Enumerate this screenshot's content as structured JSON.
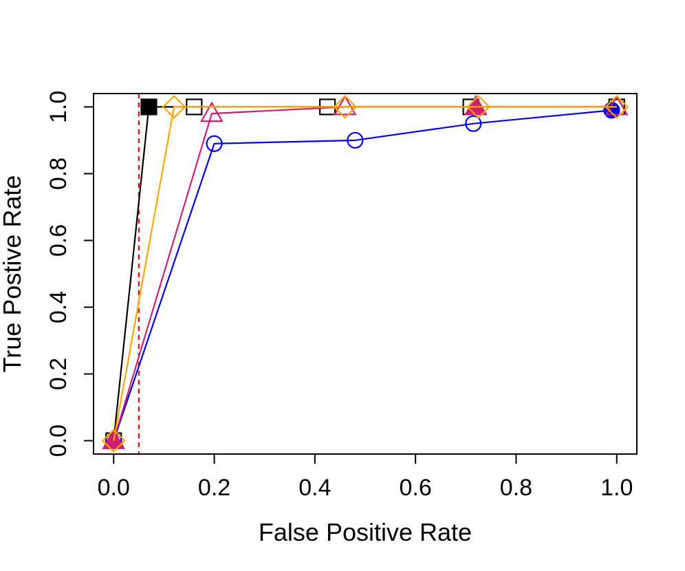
{
  "chart_data": {
    "type": "line",
    "title": "",
    "xlabel": "False Positive Rate",
    "ylabel": "True Postive Rate",
    "xlim": [
      -0.04,
      1.04
    ],
    "ylim": [
      -0.04,
      1.04
    ],
    "xticks": [
      0.0,
      0.2,
      0.4,
      0.6,
      0.8,
      1.0
    ],
    "yticks": [
      0.0,
      0.2,
      0.4,
      0.6,
      0.8,
      1.0
    ],
    "xtick_labels": [
      "0.0",
      "0.2",
      "0.4",
      "0.6",
      "0.8",
      "1.0"
    ],
    "ytick_labels": [
      "0.0",
      "0.2",
      "0.4",
      "0.6",
      "0.8",
      "1.0"
    ],
    "reference_line": {
      "axis": "x",
      "value": 0.05,
      "color": "#ff0000",
      "style": "dashed"
    },
    "series": [
      {
        "name": "black-squares",
        "color": "#000000",
        "marker": "square",
        "x": [
          0.0,
          0.07,
          0.16,
          0.425,
          0.71,
          1.0
        ],
        "y": [
          0.0,
          1.0,
          1.0,
          1.0,
          1.0,
          1.0
        ],
        "filled": [
          false,
          true,
          false,
          false,
          false,
          false
        ]
      },
      {
        "name": "blue-circles",
        "color": "#0000ee",
        "marker": "circle",
        "x": [
          0.0,
          0.2,
          0.48,
          0.715,
          0.99
        ],
        "y": [
          0.0,
          0.89,
          0.9,
          0.95,
          0.99
        ],
        "filled": [
          false,
          false,
          false,
          false,
          true
        ]
      },
      {
        "name": "magenta-triangles",
        "color": "#cc1f73",
        "marker": "triangle",
        "x": [
          0.0,
          0.195,
          0.46,
          0.72,
          1.0
        ],
        "y": [
          0.0,
          0.98,
          1.0,
          1.0,
          1.0
        ],
        "filled": [
          true,
          false,
          false,
          true,
          false
        ]
      },
      {
        "name": "orange-diamonds",
        "color": "#ffa500",
        "marker": "diamond",
        "x": [
          0.0,
          0.12,
          0.46,
          0.725,
          1.0
        ],
        "y": [
          0.0,
          1.0,
          1.0,
          1.0,
          1.0
        ],
        "filled": [
          false,
          false,
          false,
          false,
          false
        ]
      }
    ]
  }
}
